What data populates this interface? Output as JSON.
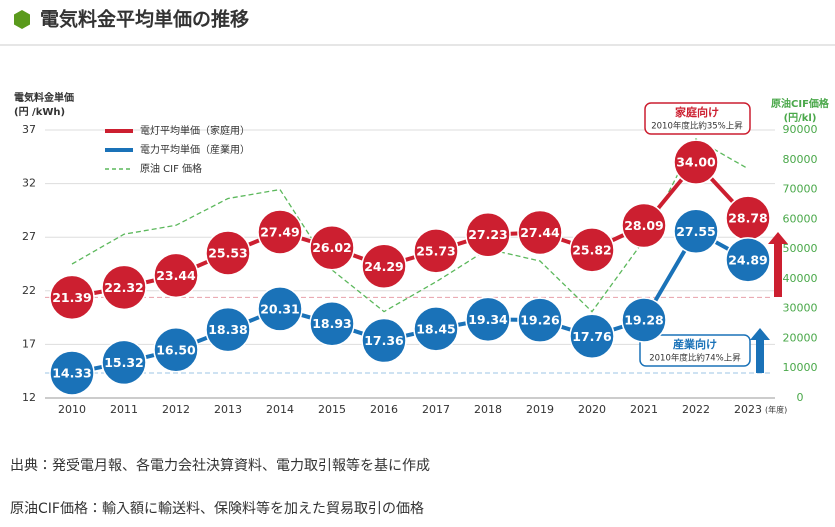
{
  "header": {
    "title": "電気料金平均単価の推移"
  },
  "chart_data": {
    "type": "line",
    "y_label": [
      "電気料金単価",
      "(円 /kWh)"
    ],
    "y2_label": [
      "原油CIF価格",
      "(円/kl)"
    ],
    "x_unit": "(年度)",
    "categories": [
      "2010",
      "2011",
      "2012",
      "2013",
      "2014",
      "2015",
      "2016",
      "2017",
      "2018",
      "2019",
      "2020",
      "2021",
      "2022",
      "2023"
    ],
    "series": [
      {
        "name": "電灯平均単価（家庭用）",
        "color": "#cc1f30",
        "marker": "circle",
        "values": [
          21.39,
          22.32,
          23.44,
          25.53,
          27.49,
          26.02,
          24.29,
          25.73,
          27.23,
          27.44,
          25.82,
          28.09,
          34.0,
          28.78
        ],
        "value_labels": [
          "21.39",
          "22.32",
          "23.44",
          "25.53",
          "27.49",
          "26.02",
          "24.29",
          "25.73",
          "27.23",
          "27.44",
          "25.82",
          "28.09",
          "34.00",
          "28.78"
        ]
      },
      {
        "name": "電力平均単価（産業用）",
        "color": "#1a72b8",
        "marker": "circle",
        "values": [
          14.33,
          15.32,
          16.5,
          18.38,
          20.31,
          18.93,
          17.36,
          18.45,
          19.34,
          19.26,
          17.76,
          19.28,
          27.55,
          24.89
        ],
        "value_labels": [
          "14.33",
          "15.32",
          "16.50",
          "18.38",
          "20.31",
          "18.93",
          "17.36",
          "18.45",
          "19.34",
          "19.26",
          "17.76",
          "19.28",
          "27.55",
          "24.89"
        ]
      },
      {
        "name": "原油 CIF 価格",
        "color": "#5cb85c",
        "axis": "y2",
        "dashed": true,
        "values": [
          45000,
          55000,
          58000,
          67000,
          70000,
          43000,
          29000,
          39000,
          50000,
          46000,
          29000,
          53000,
          87000,
          77000
        ]
      }
    ],
    "ylim": [
      12,
      37
    ],
    "yticks": [
      12,
      17,
      22,
      27,
      32,
      37
    ],
    "y2lim": [
      0,
      90000
    ],
    "y2ticks": [
      0,
      10000,
      20000,
      30000,
      40000,
      50000,
      60000,
      70000,
      80000,
      90000
    ],
    "grid": true,
    "annotations": [
      {
        "title": "家庭向け",
        "text": "2010年度比約35%上昇"
      },
      {
        "title": "産業向け",
        "text": "2010年度比約74%上昇"
      }
    ]
  },
  "notes": [
    "出典：発受電月報、各電力会社決算資料、電力取引報等を基に作成",
    "原油CIF価格：輸入額に輸送料、保険料等を加えた貿易取引の価格"
  ]
}
